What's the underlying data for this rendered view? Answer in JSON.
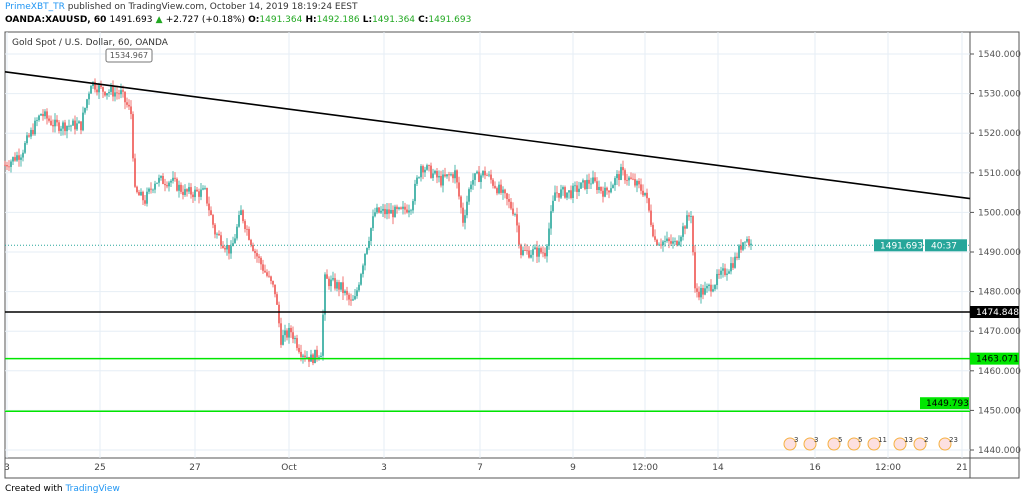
{
  "header": {
    "user": "PrimeXBT_TR",
    "published": "published on TradingView.com, October 14, 2019 18:19:24 EEST",
    "symbol": "OANDA:XAUUSD, 60",
    "last": "1491.693",
    "change": "+2.727 (+0.18%)",
    "open_label": "O:",
    "open": "1491.364",
    "high_label": "H:",
    "high": "1492.186",
    "low_label": "L:",
    "low": "1491.364",
    "close_label": "C:",
    "close": "1491.693"
  },
  "footer": {
    "created_with": "Created with",
    "brand": "TradingView"
  },
  "colors": {
    "up": "#26a69a",
    "down": "#ef5350",
    "support": "#00e600",
    "level": "#000000",
    "last": "#26a69a"
  },
  "chart_data": {
    "type": "candlestick",
    "title": "Gold Spot / U.S. Dollar, 60, OANDA",
    "ylim": [
      1437,
      1547
    ],
    "y_ticks": [
      "1540.000",
      "1530.000",
      "1520.000",
      "1510.000",
      "1500.000",
      "1490.000",
      "1480.000",
      "1470.000",
      "1460.000",
      "1450.000",
      "1440.000"
    ],
    "x_ticks": [
      "3",
      "25",
      "27",
      "Oct",
      "3",
      "7",
      "9",
      "12:00",
      "14",
      "16",
      "12:00",
      "21"
    ],
    "grid": true,
    "price_path": [
      [
        0,
        1512
      ],
      [
        8,
        1515
      ],
      [
        18,
        1525
      ],
      [
        25,
        1522
      ],
      [
        38,
        1522
      ],
      [
        43,
        1533
      ],
      [
        48,
        1531
      ],
      [
        58,
        1530
      ],
      [
        63,
        1525
      ],
      [
        65,
        1505
      ],
      [
        70,
        1503
      ],
      [
        75,
        1508
      ],
      [
        83,
        1508
      ],
      [
        90,
        1505
      ],
      [
        100,
        1505
      ],
      [
        105,
        1495
      ],
      [
        113,
        1490
      ],
      [
        118,
        1500
      ],
      [
        125,
        1490
      ],
      [
        130,
        1485
      ],
      [
        135,
        1480
      ],
      [
        138,
        1468
      ],
      [
        143,
        1470
      ],
      [
        148,
        1465
      ],
      [
        153,
        1463
      ],
      [
        158,
        1465
      ],
      [
        160,
        1483
      ],
      [
        168,
        1481
      ],
      [
        173,
        1477
      ],
      [
        175,
        1478
      ],
      [
        180,
        1490
      ],
      [
        185,
        1500
      ],
      [
        198,
        1500
      ],
      [
        203,
        1502
      ],
      [
        208,
        1512
      ],
      [
        218,
        1508
      ],
      [
        225,
        1510
      ],
      [
        229,
        1498
      ],
      [
        233,
        1508
      ],
      [
        240,
        1510
      ],
      [
        248,
        1505
      ],
      [
        255,
        1500
      ],
      [
        258,
        1490
      ],
      [
        263,
        1490
      ],
      [
        270,
        1490
      ],
      [
        275,
        1505
      ],
      [
        283,
        1505
      ],
      [
        293,
        1508
      ],
      [
        300,
        1505
      ],
      [
        308,
        1510
      ],
      [
        313,
        1508
      ],
      [
        320,
        1505
      ],
      [
        325,
        1493
      ],
      [
        335,
        1492
      ],
      [
        343,
        1500
      ],
      [
        345,
        1480
      ],
      [
        350,
        1480
      ],
      [
        358,
        1484
      ],
      [
        365,
        1488
      ],
      [
        370,
        1494
      ],
      [
        373,
        1491.693
      ]
    ],
    "high_marker": "1534.967",
    "trendline": {
      "from": 1535.5,
      "to": 1503.5
    },
    "levels": [
      {
        "value": 1474.848,
        "label": "1474.848",
        "color": "#000000"
      },
      {
        "value": 1463.071,
        "label": "1463.071",
        "color": "#00e600"
      },
      {
        "value": 1449.793,
        "label": "1449.793",
        "color": "#00e600"
      }
    ],
    "last_price": {
      "label": "1491.693",
      "countdown": "40:37"
    },
    "events": [
      "3",
      "3",
      "5",
      "5",
      "11",
      "13",
      "2",
      "23"
    ]
  }
}
